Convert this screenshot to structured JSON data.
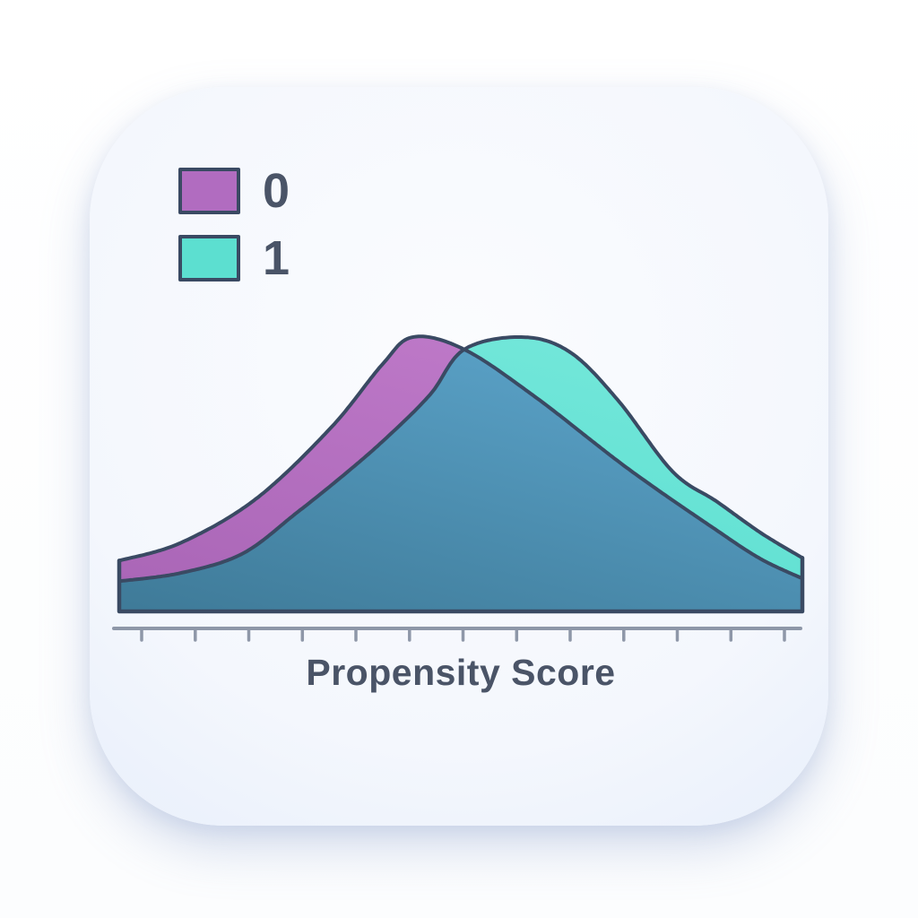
{
  "chart_data": {
    "type": "area",
    "title": "",
    "xlabel": "Propensity Score",
    "ylabel": "",
    "x_range": [
      0,
      1
    ],
    "grid": false,
    "legend_position": "top-left",
    "legend": [
      {
        "label": "0",
        "color": "#b16cc0"
      },
      {
        "label": "1",
        "color": "#5cdfd0"
      }
    ],
    "series": [
      {
        "name": "0",
        "fill_light": "#c07bca",
        "fill_dark": "#a965b6",
        "points": [
          [
            0,
            0.185
          ],
          [
            0.09,
            0.25
          ],
          [
            0.2,
            0.41
          ],
          [
            0.31,
            0.67
          ],
          [
            0.385,
            0.9
          ],
          [
            0.43,
            1.0
          ],
          [
            0.505,
            0.955
          ],
          [
            0.61,
            0.78
          ],
          [
            0.745,
            0.52
          ],
          [
            0.875,
            0.295
          ],
          [
            0.94,
            0.19
          ],
          [
            1,
            0.12
          ]
        ]
      },
      {
        "name": "1",
        "fill_light": "#74e7da",
        "fill_dark": "#52dccd",
        "points": [
          [
            0,
            0.11
          ],
          [
            0.09,
            0.14
          ],
          [
            0.18,
            0.21
          ],
          [
            0.26,
            0.36
          ],
          [
            0.33,
            0.5
          ],
          [
            0.39,
            0.63
          ],
          [
            0.455,
            0.79
          ],
          [
            0.505,
            0.955
          ],
          [
            0.59,
            1.0
          ],
          [
            0.66,
            0.945
          ],
          [
            0.73,
            0.77
          ],
          [
            0.81,
            0.51
          ],
          [
            0.875,
            0.4
          ],
          [
            0.94,
            0.285
          ],
          [
            1,
            0.195
          ]
        ]
      }
    ],
    "overlap": {
      "fill_light": "#5ba3c9",
      "fill_dark": "#3f7b99"
    },
    "outline_color": "#3a4a63",
    "axis": {
      "color": "#8e97a8",
      "tick_count": 13
    },
    "text_color": "#4a5467"
  }
}
